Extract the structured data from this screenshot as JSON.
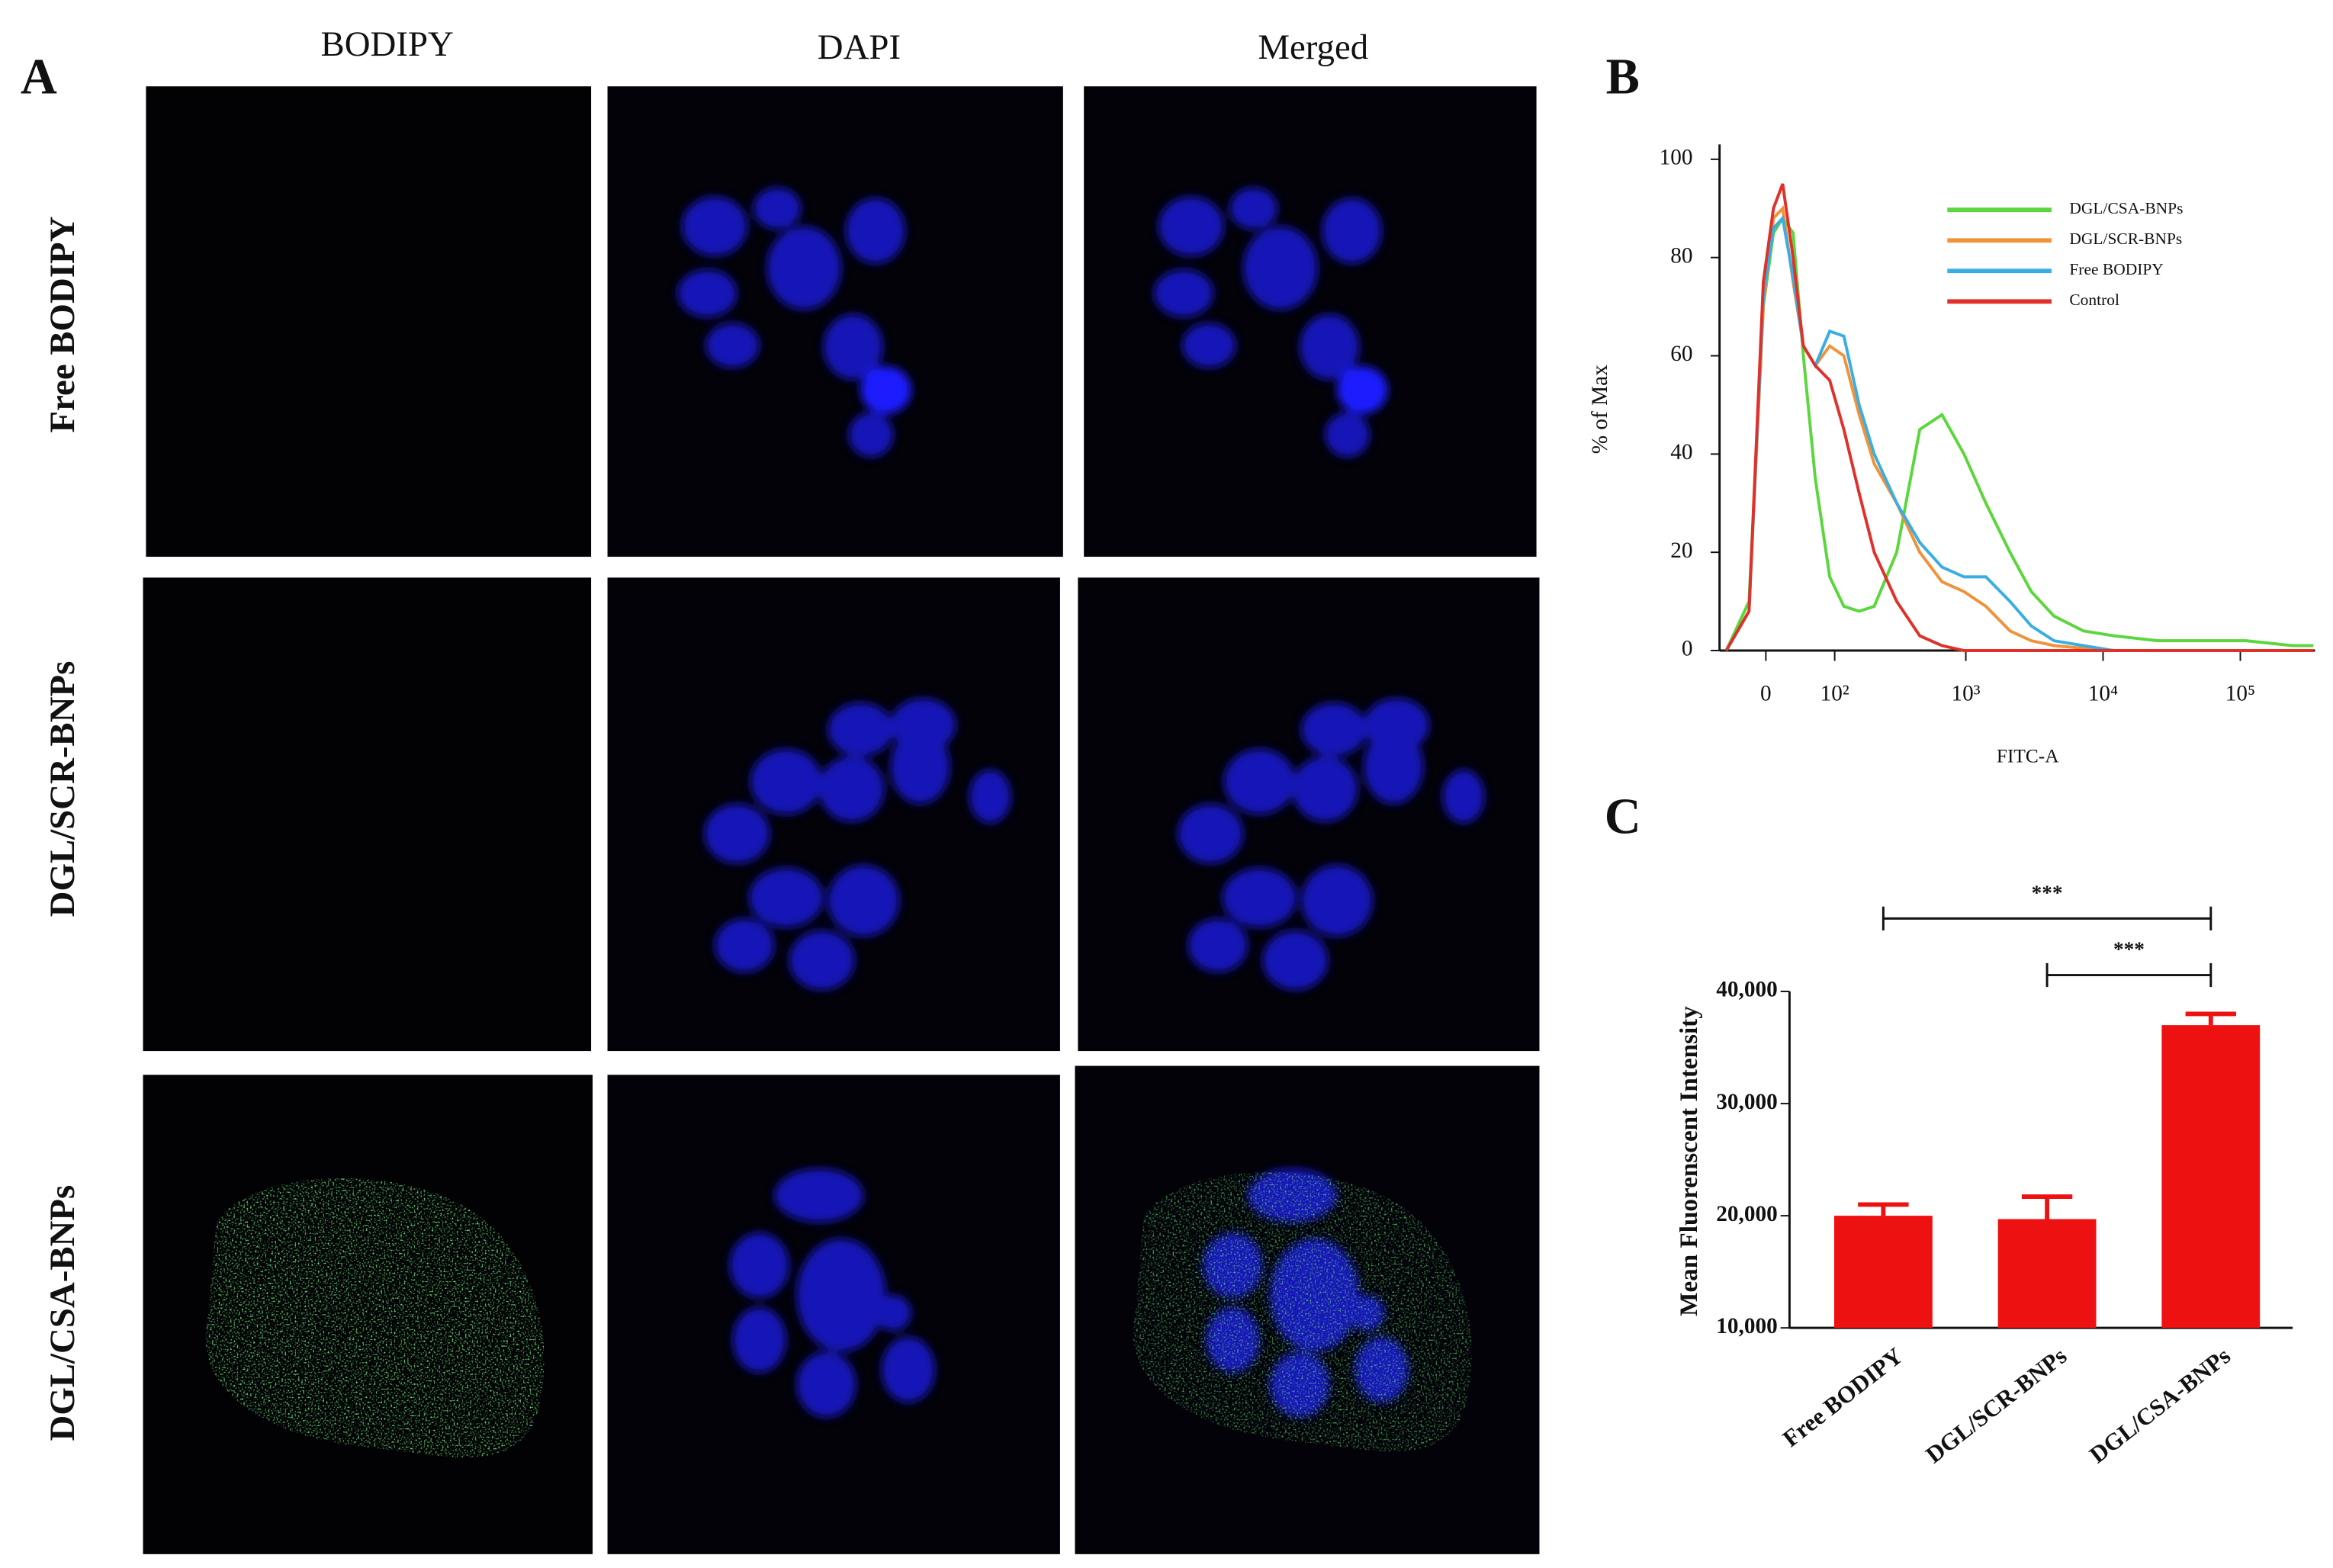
{
  "panel_a": {
    "label": "A",
    "columns": [
      "BODIPY",
      "DAPI",
      "Merged"
    ],
    "rows": [
      "Free BODIPY",
      "DGL/SCR-BNPs",
      "DGL/CSA-BNPs"
    ]
  },
  "chart_data": [
    {
      "type": "line",
      "panel_label": "B",
      "x_label": "FITC-A",
      "y_label": "% of Max",
      "xscale": "biexponential",
      "x": [
        -50,
        -20,
        -3,
        9,
        20,
        33,
        47,
        65,
        90,
        120,
        160,
        210,
        310,
        460,
        670,
        970,
        1400,
        2100,
        3000,
        4400,
        7200,
        12000,
        25000,
        53000,
        110000,
        240000,
        340000
      ],
      "series": [
        {
          "name": "DGL/CSA-BNPs",
          "color": "#5bd63c",
          "values": [
            0,
            10,
            70,
            85,
            88,
            85,
            60,
            35,
            15,
            9,
            8,
            9,
            20,
            45,
            48,
            40,
            30,
            20,
            12,
            7,
            4,
            3,
            2,
            2,
            2,
            1,
            1
          ]
        },
        {
          "name": "DGL/SCR-BNPs",
          "color": "#f0923a",
          "values": [
            0,
            8,
            70,
            88,
            90,
            75,
            62,
            58,
            62,
            60,
            48,
            38,
            30,
            20,
            14,
            12,
            9,
            4,
            2,
            1,
            0.5,
            0,
            0,
            0,
            0,
            0,
            0
          ]
        },
        {
          "name": "Free BODIPY",
          "color": "#3aaee0",
          "values": [
            0,
            8,
            72,
            86,
            88,
            76,
            62,
            58,
            65,
            64,
            50,
            40,
            30,
            22,
            17,
            15,
            15,
            10,
            5,
            2,
            1,
            0,
            0,
            0,
            0,
            0,
            0
          ]
        },
        {
          "name": "Control",
          "color": "#e0302a",
          "values": [
            0,
            8,
            75,
            90,
            95,
            80,
            62,
            58,
            55,
            45,
            32,
            20,
            10,
            3,
            1,
            0,
            0,
            0,
            0,
            0,
            0,
            0,
            0,
            0,
            0,
            0,
            0
          ]
        }
      ],
      "xlim": [
        -60,
        350000
      ],
      "xticks": [
        0,
        {
          "value": 100,
          "label": "10²"
        },
        {
          "value": 1000,
          "label": "10³"
        },
        {
          "value": 10000,
          "label": "10⁴"
        },
        {
          "value": 100000,
          "label": "10⁵"
        }
      ],
      "ylim": [
        0,
        100
      ],
      "yticks": [
        0,
        20,
        40,
        60,
        80,
        100
      ],
      "legend": "upper right"
    },
    {
      "type": "bar",
      "panel_label": "C",
      "y_label": "Mean Fluorenscent Intensity",
      "categories": [
        "Free BODIPY",
        "DGL/SCR-BNPs",
        "DGL/CSA-BNPs"
      ],
      "values": [
        20000,
        19700,
        37000
      ],
      "errors": [
        1000,
        2000,
        1000
      ],
      "color": "#ee1111",
      "ylim": [
        10000,
        40000
      ],
      "yticks": [
        {
          "value": 10000,
          "label": "10,000"
        },
        {
          "value": 20000,
          "label": "20,000"
        },
        {
          "value": 30000,
          "label": "30,000"
        },
        {
          "value": 40000,
          "label": "40,000"
        }
      ],
      "annotations": [
        "***",
        "***"
      ]
    }
  ]
}
